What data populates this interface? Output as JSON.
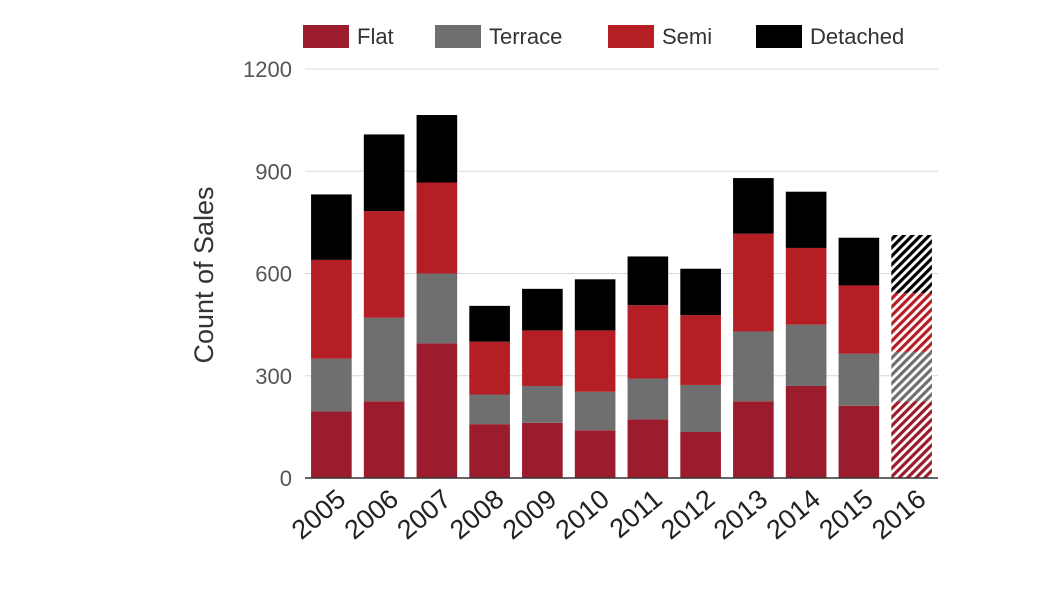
{
  "chart_data": {
    "type": "bar",
    "stacked": true,
    "title": "",
    "xlabel": "",
    "ylabel": "Count of Sales",
    "ylim": [
      0,
      1200
    ],
    "yticks": [
      0,
      300,
      600,
      900,
      1200
    ],
    "grid": true,
    "legend_position": "top",
    "categories": [
      "2005",
      "2006",
      "2007",
      "2008",
      "2009",
      "2010",
      "2011",
      "2012",
      "2013",
      "2014",
      "2015",
      "2016"
    ],
    "hatched_categories": [
      "2016"
    ],
    "series": [
      {
        "name": "Flat",
        "color": "#9b1c2c",
        "values": [
          195,
          225,
          395,
          158,
          162,
          140,
          172,
          135,
          225,
          270,
          212,
          225
        ]
      },
      {
        "name": "Terrace",
        "color": "#6f6f6f",
        "values": [
          155,
          245,
          205,
          87,
          108,
          113,
          120,
          138,
          205,
          180,
          153,
          145
        ]
      },
      {
        "name": "Semi",
        "color": "#b51e24",
        "values": [
          290,
          313,
          267,
          155,
          163,
          180,
          215,
          205,
          287,
          225,
          200,
          173
        ]
      },
      {
        "name": "Detached",
        "color": "#000000",
        "values": [
          192,
          225,
          198,
          105,
          122,
          150,
          143,
          136,
          163,
          165,
          140,
          170
        ]
      }
    ]
  }
}
